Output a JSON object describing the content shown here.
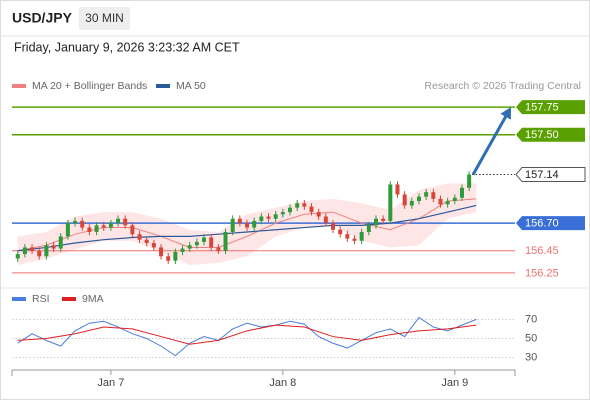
{
  "header": {
    "symbol": "USD/JPY",
    "interval": "30 MIN",
    "timestamp": "Friday, January 9, 2026 3:23:32 AM CET",
    "source": "Research © 2026 Trading Central"
  },
  "chart_data": [
    {
      "type": "candlestick",
      "x": [
        -13,
        -12,
        -11,
        -10,
        -9,
        -8,
        -7,
        -6,
        -5,
        -4,
        -3,
        -2,
        -1,
        0,
        1,
        2,
        3,
        4,
        5,
        6,
        7,
        8,
        9,
        10,
        11,
        12,
        13,
        14,
        15,
        16,
        17,
        18,
        19,
        20,
        21,
        22,
        23,
        24,
        25,
        26,
        27,
        28,
        29,
        30,
        31,
        32,
        33,
        34,
        35,
        36,
        37,
        38,
        39,
        40,
        41,
        42,
        43,
        44,
        45,
        46,
        47,
        48,
        49,
        50
      ],
      "open": [
        156.38,
        156.42,
        156.48,
        156.45,
        156.4,
        156.5,
        156.47,
        156.58,
        156.7,
        156.72,
        156.66,
        156.62,
        156.68,
        156.66,
        156.7,
        156.74,
        156.68,
        156.6,
        156.55,
        156.52,
        156.48,
        156.4,
        156.36,
        156.44,
        156.47,
        156.5,
        156.53,
        156.57,
        156.48,
        156.45,
        156.62,
        156.74,
        156.7,
        156.66,
        156.72,
        156.76,
        156.74,
        156.78,
        156.8,
        156.84,
        156.88,
        156.85,
        156.8,
        156.76,
        156.7,
        156.64,
        156.6,
        156.56,
        156.54,
        156.62,
        156.68,
        156.74,
        156.72,
        157.05,
        156.96,
        156.86,
        156.9,
        156.94,
        156.98,
        156.92,
        156.87,
        156.9,
        156.93,
        157.02
      ],
      "high": [
        156.45,
        156.51,
        156.51,
        156.48,
        156.53,
        156.53,
        156.61,
        156.73,
        156.75,
        156.75,
        156.69,
        156.71,
        156.71,
        156.73,
        156.77,
        156.77,
        156.71,
        156.63,
        156.58,
        156.55,
        156.51,
        156.43,
        156.47,
        156.5,
        156.53,
        156.56,
        156.6,
        156.6,
        156.51,
        156.65,
        156.77,
        156.77,
        156.73,
        156.75,
        156.79,
        156.79,
        156.81,
        156.83,
        156.87,
        156.91,
        156.91,
        156.88,
        156.83,
        156.79,
        156.73,
        156.67,
        156.63,
        156.59,
        156.65,
        156.71,
        156.77,
        156.77,
        157.08,
        157.08,
        156.99,
        156.93,
        156.97,
        157.01,
        157.01,
        156.95,
        156.93,
        156.96,
        157.05,
        157.17
      ],
      "low": [
        156.35,
        156.39,
        156.42,
        156.37,
        156.37,
        156.44,
        156.44,
        156.55,
        156.67,
        156.63,
        156.59,
        156.59,
        156.63,
        156.63,
        156.67,
        156.65,
        156.57,
        156.52,
        156.49,
        156.45,
        156.37,
        156.33,
        156.33,
        156.41,
        156.44,
        156.47,
        156.5,
        156.45,
        156.42,
        156.42,
        156.59,
        156.67,
        156.63,
        156.63,
        156.69,
        156.71,
        156.71,
        156.75,
        156.77,
        156.81,
        156.82,
        156.77,
        156.73,
        156.67,
        156.61,
        156.57,
        156.53,
        156.51,
        156.51,
        156.59,
        156.65,
        156.69,
        156.69,
        156.93,
        156.83,
        156.83,
        156.87,
        156.91,
        156.89,
        156.84,
        156.84,
        156.87,
        156.9,
        156.99
      ],
      "close": [
        156.42,
        156.48,
        156.45,
        156.4,
        156.5,
        156.47,
        156.58,
        156.7,
        156.72,
        156.66,
        156.62,
        156.68,
        156.66,
        156.7,
        156.74,
        156.68,
        156.6,
        156.55,
        156.52,
        156.48,
        156.4,
        156.36,
        156.44,
        156.47,
        156.5,
        156.53,
        156.57,
        156.48,
        156.45,
        156.62,
        156.74,
        156.7,
        156.66,
        156.72,
        156.76,
        156.74,
        156.78,
        156.8,
        156.84,
        156.88,
        156.85,
        156.8,
        156.76,
        156.7,
        156.64,
        156.6,
        156.56,
        156.54,
        156.62,
        156.68,
        156.74,
        156.72,
        157.05,
        156.96,
        156.86,
        156.9,
        156.94,
        156.98,
        156.92,
        156.87,
        156.9,
        156.93,
        157.02,
        157.14
      ],
      "up_color": "#2f9a3a",
      "down_color": "#d8463a",
      "xlim": [
        -13.8,
        56.4
      ],
      "xticks": [
        {
          "value": 0,
          "label": "Jan 7"
        },
        {
          "value": 24,
          "label": "Jan 8"
        },
        {
          "value": 48,
          "label": "Jan 9"
        }
      ],
      "ylim": [
        156.14,
        157.86
      ],
      "series": [
        {
          "name": "MA 20 + Bollinger Bands",
          "color": "#f08080",
          "band_color": "#ffd6d6",
          "x": [
            -13,
            -9,
            -5,
            -1,
            3,
            7,
            11,
            15,
            19,
            23,
            27,
            31,
            35,
            39,
            43,
            47,
            51
          ],
          "values": [
            156.45,
            156.5,
            156.6,
            156.66,
            156.66,
            156.58,
            156.48,
            156.48,
            156.58,
            156.7,
            156.78,
            156.8,
            156.7,
            156.64,
            156.74,
            156.9,
            156.92
          ],
          "upper": [
            156.58,
            156.62,
            156.76,
            156.8,
            156.8,
            156.74,
            156.64,
            156.62,
            156.78,
            156.84,
            156.9,
            156.92,
            156.88,
            156.82,
            157.0,
            157.06,
            157.06
          ],
          "lower": [
            156.32,
            156.38,
            156.46,
            156.54,
            156.54,
            156.44,
            156.32,
            156.34,
            156.4,
            156.58,
            156.66,
            156.68,
            156.54,
            156.48,
            156.5,
            156.74,
            156.8
          ]
        },
        {
          "name": "MA 50",
          "color": "#2a5a9a",
          "x": [
            -13,
            -9,
            -5,
            -1,
            3,
            7,
            11,
            15,
            19,
            23,
            27,
            31,
            35,
            39,
            43,
            47,
            51
          ],
          "values": [
            156.45,
            156.48,
            156.52,
            156.55,
            156.57,
            156.58,
            156.58,
            156.6,
            156.62,
            156.64,
            156.66,
            156.68,
            156.68,
            156.7,
            156.74,
            156.8,
            156.86
          ]
        }
      ],
      "levels": [
        {
          "value": 157.75,
          "label": "157.75",
          "color": "#5aa000",
          "style": "filled"
        },
        {
          "value": 157.5,
          "label": "157.50",
          "color": "#5aa000",
          "style": "filled"
        },
        {
          "value": 156.7,
          "label": "156.70",
          "color": "#3a6fd8",
          "style": "filled"
        },
        {
          "value": 156.45,
          "label": "156.45",
          "color": "#f07070",
          "style": "text"
        },
        {
          "value": 156.25,
          "label": "156.25",
          "color": "#f07070",
          "style": "text"
        }
      ],
      "current": {
        "value": 157.14,
        "label": "157.14"
      },
      "target": 157.75,
      "arrow_color": "#2f6db5"
    },
    {
      "type": "line",
      "series": [
        {
          "name": "RSI",
          "color": "#4a7fdc",
          "x": [
            -13,
            -11,
            -9,
            -7,
            -5,
            -3,
            -1,
            1,
            3,
            5,
            7,
            9,
            11,
            13,
            15,
            17,
            19,
            21,
            23,
            25,
            27,
            29,
            31,
            33,
            35,
            37,
            39,
            41,
            43,
            45,
            47,
            49,
            51
          ],
          "values": [
            45,
            55,
            48,
            42,
            58,
            66,
            68,
            62,
            55,
            50,
            42,
            32,
            45,
            52,
            48,
            60,
            66,
            62,
            64,
            68,
            65,
            52,
            45,
            40,
            48,
            56,
            60,
            52,
            72,
            62,
            58,
            64,
            70
          ]
        },
        {
          "name": "9MA",
          "color": "#e02020",
          "x": [
            -13,
            -9,
            -5,
            -1,
            3,
            7,
            11,
            15,
            19,
            23,
            27,
            31,
            35,
            39,
            43,
            47,
            51
          ],
          "values": [
            48,
            50,
            55,
            62,
            60,
            52,
            44,
            48,
            58,
            64,
            62,
            52,
            48,
            54,
            58,
            60,
            64
          ]
        }
      ],
      "ylim": [
        17,
        84
      ],
      "yticks": [
        30,
        50,
        70
      ],
      "grid": true
    }
  ]
}
